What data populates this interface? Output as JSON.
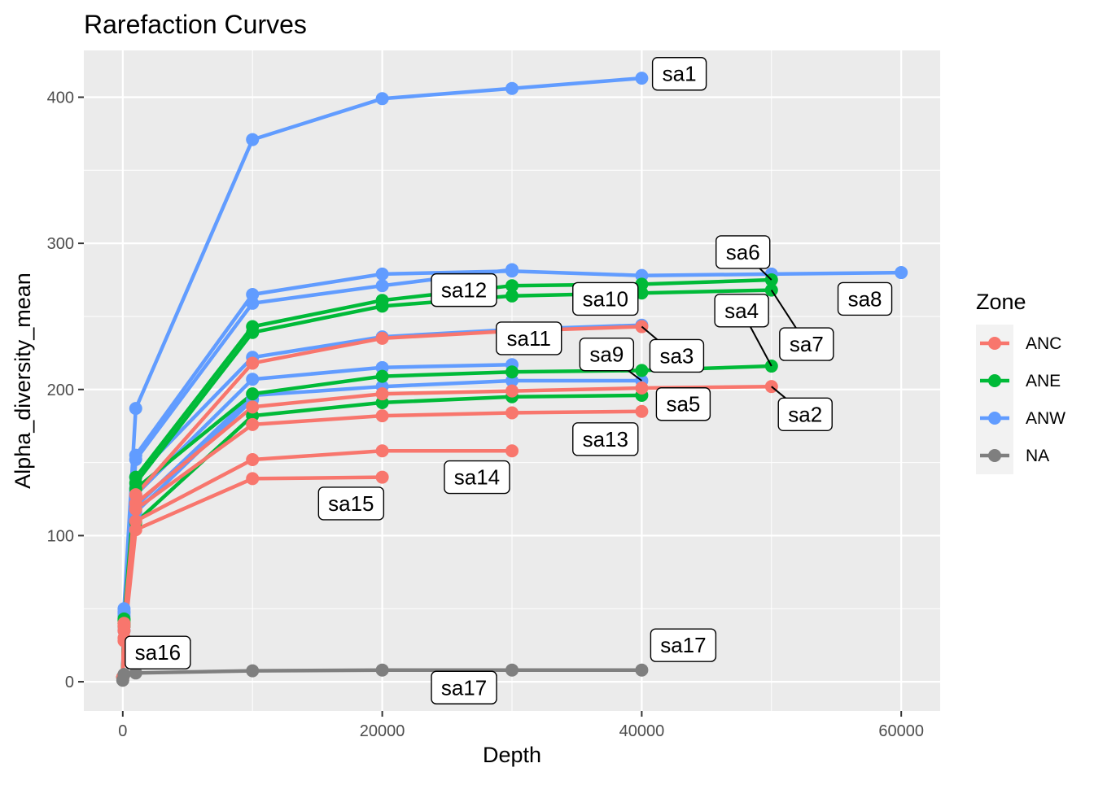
{
  "chart_data": {
    "type": "line",
    "title": "Rarefaction Curves",
    "xlabel": "Depth",
    "ylabel": "Alpha_diversity_mean",
    "xlim": [
      -3000,
      63000
    ],
    "ylim": [
      -20,
      432
    ],
    "xticks": [
      0,
      20000,
      40000,
      60000
    ],
    "yticks": [
      0,
      100,
      200,
      300,
      400
    ],
    "xtick_labels": [
      "0",
      "20000",
      "40000",
      "60000"
    ],
    "ytick_labels": [
      "0",
      "100",
      "200",
      "300",
      "400"
    ],
    "grid": true,
    "legend": {
      "title": "Zone",
      "placement": "right",
      "entries": [
        {
          "label": "ANC",
          "color": "#F8766D"
        },
        {
          "label": "ANE",
          "color": "#00BA38"
        },
        {
          "label": "ANW",
          "color": "#619CFF"
        },
        {
          "label": "NA",
          "color": "#7F7F7F"
        }
      ]
    },
    "series": [
      {
        "zone": "ANW",
        "x": [
          0,
          100,
          1000,
          10000,
          20000,
          30000,
          40000
        ],
        "y": [
          3,
          50,
          187,
          371,
          399,
          406,
          413
        ]
      },
      {
        "zone": "ANW",
        "x": [
          0,
          100,
          1000,
          10000,
          20000,
          30000,
          40000,
          50000,
          60000
        ],
        "y": [
          3,
          48,
          155,
          265,
          279,
          281,
          278,
          279,
          280
        ]
      },
      {
        "zone": "ANW",
        "x": [
          0,
          100,
          1000,
          10000,
          20000,
          30000
        ],
        "y": [
          3,
          47,
          152,
          259,
          271,
          282
        ]
      },
      {
        "zone": "ANW",
        "x": [
          0,
          100,
          1000,
          10000,
          20000,
          30000,
          40000
        ],
        "y": [
          3,
          45,
          140,
          222,
          236,
          241,
          244
        ]
      },
      {
        "zone": "ANW",
        "x": [
          0,
          100,
          1000,
          10000,
          20000,
          30000
        ],
        "y": [
          3,
          40,
          128,
          207,
          215,
          217
        ]
      },
      {
        "zone": "ANW",
        "x": [
          0,
          100,
          1000,
          10000,
          20000,
          30000,
          40000
        ],
        "y": [
          3,
          38,
          120,
          196,
          202,
          206,
          206
        ]
      },
      {
        "zone": "ANW",
        "x": [
          0,
          100,
          1000,
          10000
        ],
        "y": [
          3,
          35,
          116,
          193
        ]
      },
      {
        "zone": "ANE",
        "x": [
          0,
          100,
          1000,
          10000,
          20000,
          30000,
          40000,
          50000
        ],
        "y": [
          3,
          43,
          140,
          243,
          261,
          271,
          272,
          275
        ]
      },
      {
        "zone": "ANE",
        "x": [
          0,
          100,
          1000,
          10000,
          20000,
          30000,
          40000,
          50000
        ],
        "y": [
          3,
          42,
          136,
          239,
          257,
          264,
          266,
          268
        ]
      },
      {
        "zone": "ANE",
        "x": [
          0,
          100,
          1000,
          10000,
          20000,
          30000,
          40000,
          50000
        ],
        "y": [
          3,
          40,
          132,
          197,
          209,
          212,
          213,
          216
        ]
      },
      {
        "zone": "ANE",
        "x": [
          0,
          100,
          1000,
          10000,
          20000,
          30000,
          40000
        ],
        "y": [
          3,
          38,
          109,
          182,
          191,
          195,
          196
        ]
      },
      {
        "zone": "ANC",
        "x": [
          0,
          100,
          1000,
          10000,
          20000,
          30000,
          40000
        ],
        "y": [
          3,
          40,
          128,
          218,
          235,
          240,
          243
        ]
      },
      {
        "zone": "ANC",
        "x": [
          0,
          100,
          1000,
          10000,
          20000,
          30000,
          40000,
          50000
        ],
        "y": [
          3,
          38,
          122,
          188,
          197,
          199,
          201,
          202
        ]
      },
      {
        "zone": "ANC",
        "x": [
          0,
          100,
          1000,
          10000,
          20000,
          30000,
          40000
        ],
        "y": [
          3,
          35,
          118,
          176,
          182,
          184,
          185
        ]
      },
      {
        "zone": "ANC",
        "x": [
          0,
          100,
          1000,
          10000,
          20000,
          30000
        ],
        "y": [
          3,
          30,
          110,
          152,
          158,
          158
        ]
      },
      {
        "zone": "ANC",
        "x": [
          0,
          100,
          1000,
          10000,
          20000
        ],
        "y": [
          3,
          28,
          104,
          139,
          140
        ]
      },
      {
        "zone": "NA",
        "x": [
          0,
          100,
          1000,
          10000,
          20000,
          30000,
          40000
        ],
        "y": [
          1,
          5,
          6,
          7.5,
          8,
          8,
          8
        ]
      }
    ],
    "annotations": [
      {
        "label": "sa1",
        "x": 40000,
        "y": 413,
        "lx": 42900,
        "ly": 416,
        "leader": false
      },
      {
        "label": "sa6",
        "x": 50000,
        "y": 275,
        "lx": 47800,
        "ly": 294,
        "leader": true
      },
      {
        "label": "sa12",
        "x": 30000,
        "y": 275,
        "lx": 26300,
        "ly": 268,
        "leader": false
      },
      {
        "label": "sa10",
        "x": 40000,
        "y": 267,
        "lx": 37200,
        "ly": 262,
        "leader": false
      },
      {
        "label": "sa8",
        "x": 60000,
        "y": 280,
        "lx": 57200,
        "ly": 262,
        "leader": false
      },
      {
        "label": "sa4",
        "x": 50000,
        "y": 216,
        "lx": 47700,
        "ly": 254,
        "leader": true
      },
      {
        "label": "sa7",
        "x": 50000,
        "y": 268,
        "lx": 52700,
        "ly": 231,
        "leader": true
      },
      {
        "label": "sa11",
        "x": 30000,
        "y": 241,
        "lx": 31300,
        "ly": 235,
        "leader": false
      },
      {
        "label": "sa3",
        "x": 40000,
        "y": 243,
        "lx": 42700,
        "ly": 223,
        "leader": true
      },
      {
        "label": "sa9",
        "x": 40000,
        "y": 206,
        "lx": 37300,
        "ly": 224,
        "leader": true
      },
      {
        "label": "sa5",
        "x": 40000,
        "y": 196,
        "lx": 43200,
        "ly": 190,
        "leader": false
      },
      {
        "label": "sa2",
        "x": 50000,
        "y": 202,
        "lx": 52600,
        "ly": 183,
        "leader": true
      },
      {
        "label": "sa13",
        "x": 40000,
        "y": 185,
        "lx": 37200,
        "ly": 166,
        "leader": false
      },
      {
        "label": "sa14",
        "x": 30000,
        "y": 158,
        "lx": 27300,
        "ly": 140,
        "leader": false
      },
      {
        "label": "sa15",
        "x": 20000,
        "y": 140,
        "lx": 17600,
        "ly": 122,
        "leader": false
      },
      {
        "label": "sa16",
        "x": 1000,
        "y": 6,
        "lx": 2700,
        "ly": 20,
        "leader": false
      },
      {
        "label": "sa17",
        "x": 40000,
        "y": 8,
        "lx": 43200,
        "ly": 25,
        "leader": false
      },
      {
        "label": "sa17",
        "x": 30000,
        "y": 8,
        "lx": 26300,
        "ly": -4,
        "leader": false
      }
    ]
  }
}
